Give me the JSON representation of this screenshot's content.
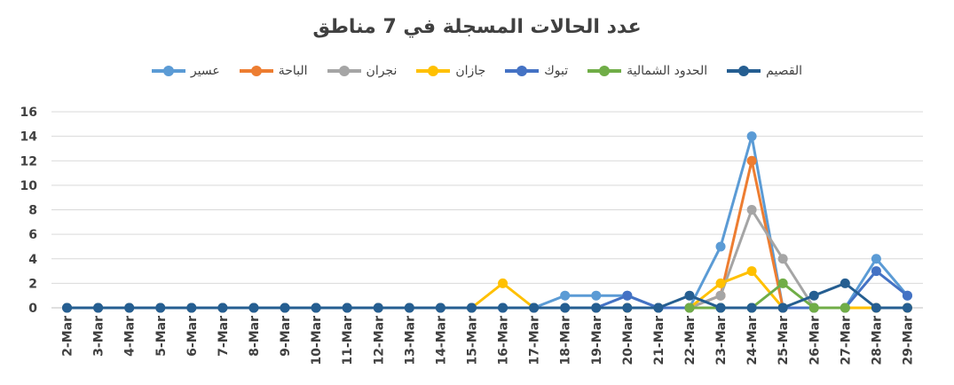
{
  "chart_data": {
    "type": "line",
    "title": "عدد الحالات المسجلة في 7 مناطق",
    "ylim": [
      0,
      16
    ],
    "yticks": [
      0,
      2,
      4,
      6,
      8,
      10,
      12,
      14,
      16
    ],
    "grid": true,
    "legend_position": "top",
    "categories": [
      "2-Mar",
      "3-Mar",
      "4-Mar",
      "5-Mar",
      "6-Mar",
      "7-Mar",
      "8-Mar",
      "9-Mar",
      "10-Mar",
      "11-Mar",
      "12-Mar",
      "13-Mar",
      "14-Mar",
      "15-Mar",
      "16-Mar",
      "17-Mar",
      "18-Mar",
      "19-Mar",
      "20-Mar",
      "21-Mar",
      "22-Mar",
      "23-Mar",
      "24-Mar",
      "25-Mar",
      "26-Mar",
      "27-Mar",
      "28-Mar",
      "29-Mar"
    ],
    "series": [
      {
        "name": "عسير",
        "color": "#5B9BD5",
        "values": [
          0,
          0,
          0,
          0,
          0,
          0,
          0,
          0,
          0,
          0,
          0,
          0,
          0,
          0,
          0,
          0,
          1,
          1,
          1,
          0,
          0,
          5,
          14,
          0,
          0,
          0,
          4,
          1
        ]
      },
      {
        "name": "الباحة",
        "color": "#ED7D31",
        "values": [
          null,
          null,
          null,
          null,
          null,
          null,
          null,
          null,
          null,
          null,
          null,
          null,
          null,
          null,
          null,
          null,
          null,
          null,
          null,
          null,
          0,
          1,
          12,
          0,
          null,
          null,
          null,
          null
        ]
      },
      {
        "name": "نجران",
        "color": "#A5A5A5",
        "values": [
          null,
          null,
          null,
          null,
          null,
          null,
          null,
          null,
          null,
          null,
          null,
          null,
          null,
          null,
          null,
          null,
          null,
          null,
          null,
          null,
          0,
          1,
          8,
          4,
          0,
          null,
          null,
          null
        ]
      },
      {
        "name": "جازان",
        "color": "#FFC000",
        "values": [
          0,
          0,
          0,
          0,
          0,
          0,
          0,
          0,
          0,
          0,
          0,
          0,
          0,
          0,
          2,
          0,
          0,
          0,
          0,
          0,
          0,
          2,
          3,
          0,
          0,
          0,
          0,
          0
        ]
      },
      {
        "name": "تبوك",
        "color": "#4472C4",
        "values": [
          0,
          0,
          0,
          0,
          0,
          0,
          0,
          0,
          0,
          0,
          0,
          0,
          0,
          0,
          0,
          0,
          0,
          0,
          1,
          0,
          0,
          0,
          0,
          0,
          0,
          0,
          3,
          1
        ]
      },
      {
        "name": "الحدود الشمالية",
        "color": "#70AD47",
        "values": [
          null,
          null,
          null,
          null,
          null,
          null,
          null,
          null,
          null,
          null,
          null,
          null,
          null,
          null,
          null,
          null,
          null,
          null,
          null,
          null,
          0,
          0,
          0,
          2,
          0,
          0,
          null,
          null
        ]
      },
      {
        "name": "القصيم",
        "color": "#255E91",
        "values": [
          0,
          0,
          0,
          0,
          0,
          0,
          0,
          0,
          0,
          0,
          0,
          0,
          0,
          0,
          0,
          0,
          0,
          0,
          0,
          0,
          1,
          0,
          0,
          0,
          1,
          2,
          0,
          0
        ]
      }
    ]
  }
}
